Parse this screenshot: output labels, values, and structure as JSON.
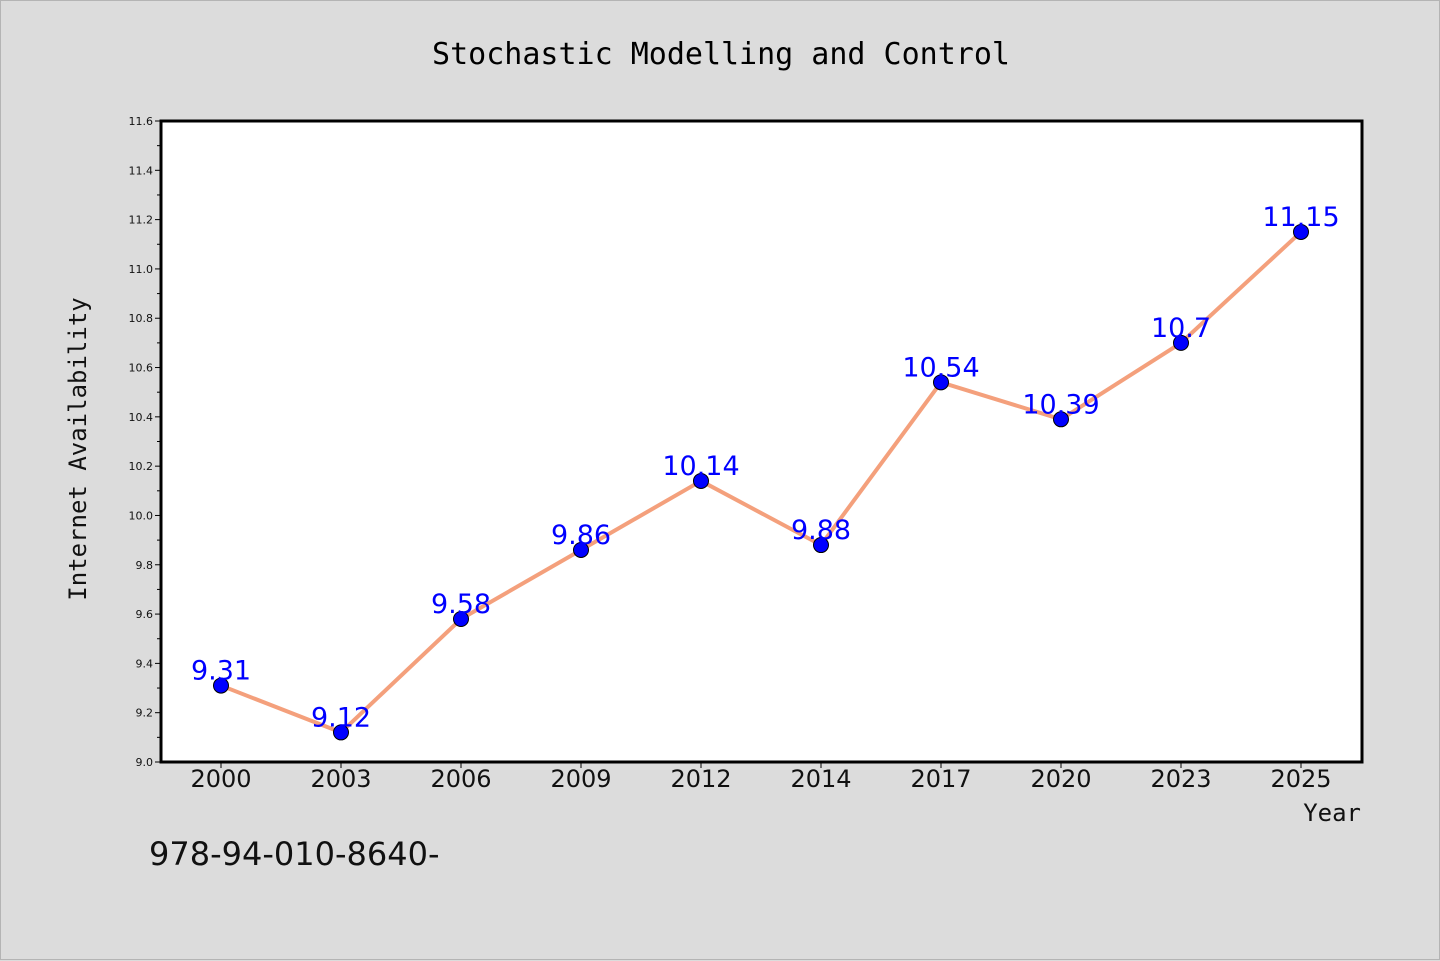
{
  "chart_data": {
    "type": "line",
    "title": "Stochastic Modelling and Control",
    "xlabel": "Year",
    "ylabel": "Internet Availability",
    "categories": [
      "2000",
      "2003",
      "2006",
      "2009",
      "2012",
      "2014",
      "2017",
      "2020",
      "2023",
      "2025"
    ],
    "series": [
      {
        "values": [
          9.31,
          9.12,
          9.58,
          9.86,
          10.14,
          9.88,
          10.54,
          10.39,
          10.7,
          11.15
        ],
        "data_labels": [
          "9.31",
          "9.12",
          "9.58",
          "9.86",
          "10.14",
          "9.88",
          "10.54",
          "10.39",
          "10.7",
          "11.15"
        ]
      }
    ],
    "ylim": [
      9.0,
      11.6
    ],
    "yticks": [
      "9.0",
      "9.2",
      "9.4",
      "9.6",
      "9.8",
      "10.0",
      "10.2",
      "10.4",
      "10.6",
      "10.8",
      "11.0",
      "11.2",
      "11.4",
      "11.6"
    ],
    "grid": false,
    "legend": "none",
    "colors": {
      "line": "#f4a07c",
      "marker": "#0000ff",
      "label": "#0000ff",
      "plot_background": "#ffffff",
      "figure_background": "#dcdcdc"
    }
  },
  "footer_text": "978-94-010-8640-"
}
